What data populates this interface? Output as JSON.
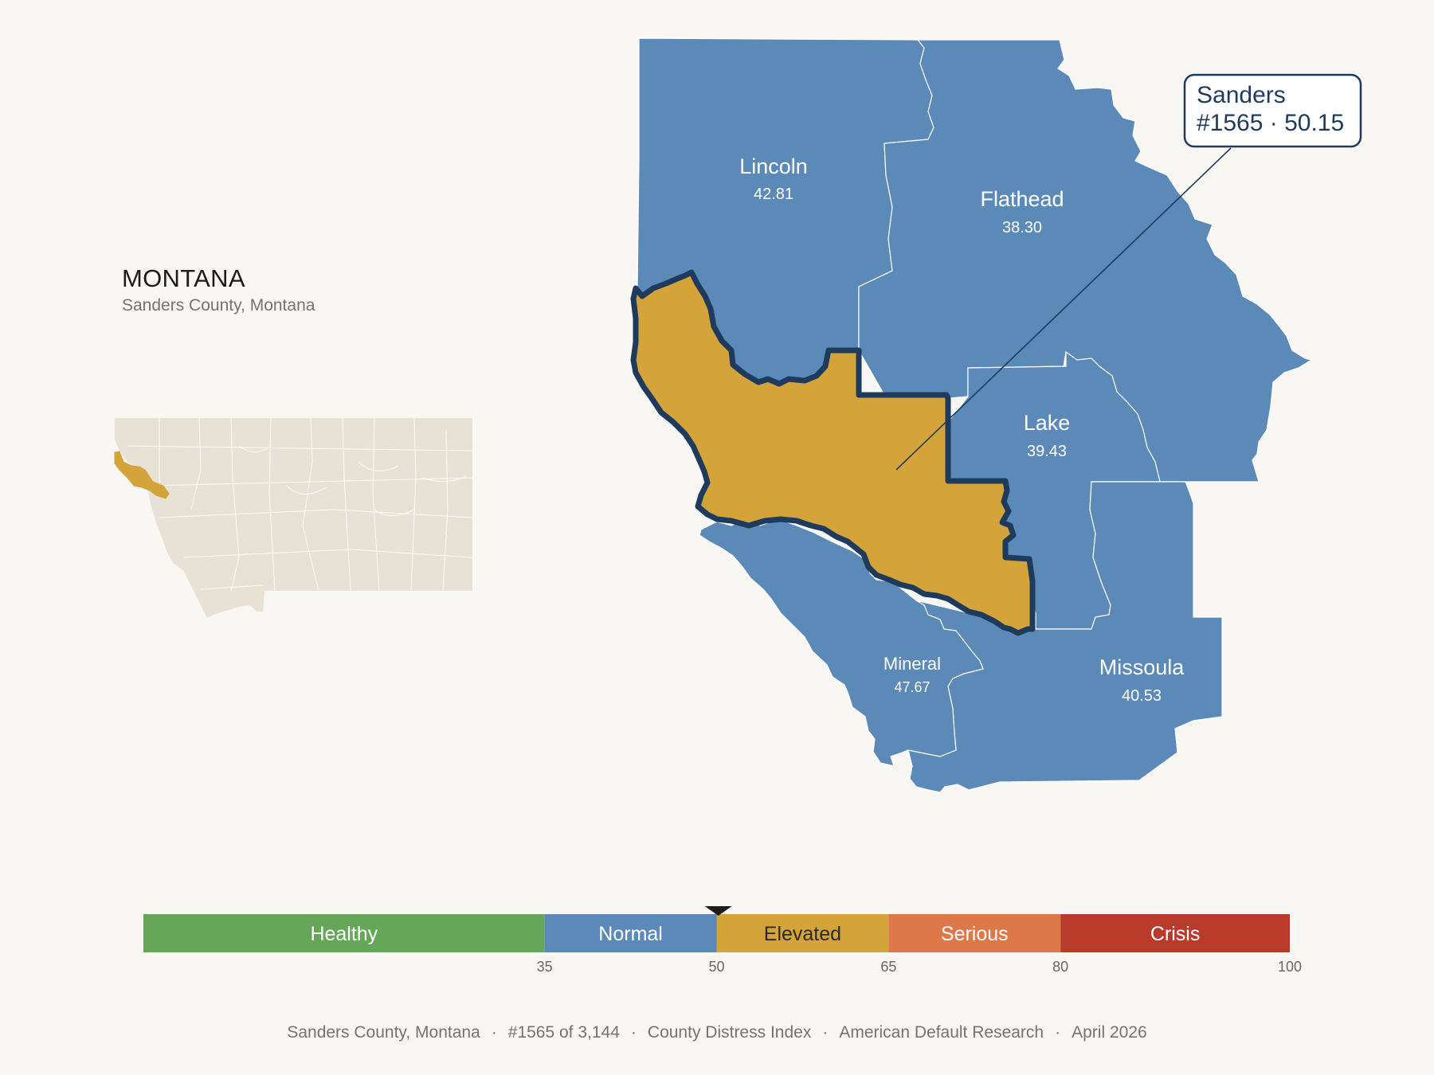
{
  "state": {
    "title": "MONTANA",
    "subtitle": "Sanders County, Montana"
  },
  "colors": {
    "background": "#f9f7f4",
    "normal": "#5b89b8",
    "elevated": "#d4a43a",
    "healthy": "#66a659",
    "serious": "#de784a",
    "crisis": "#b93b2c",
    "outline": "#1e3a5c",
    "inset_fill": "#e8e1d5"
  },
  "focus": {
    "name": "Sanders",
    "rank_score": "#1565 · 50.15"
  },
  "counties": [
    {
      "name": "Lincoln",
      "score": "42.81",
      "category": "Normal"
    },
    {
      "name": "Flathead",
      "score": "38.30",
      "category": "Normal"
    },
    {
      "name": "Lake",
      "score": "39.43",
      "category": "Normal"
    },
    {
      "name": "Mineral",
      "score": "47.67",
      "category": "Normal"
    },
    {
      "name": "Missoula",
      "score": "40.53",
      "category": "Normal"
    }
  ],
  "scale": {
    "marker_value": 50.15,
    "min": 0,
    "max": 100,
    "bands": [
      {
        "label": "Healthy",
        "from": 0,
        "to": 35
      },
      {
        "label": "Normal",
        "from": 35,
        "to": 50
      },
      {
        "label": "Elevated",
        "from": 50,
        "to": 65
      },
      {
        "label": "Serious",
        "from": 65,
        "to": 80
      },
      {
        "label": "Crisis",
        "from": 80,
        "to": 100
      }
    ],
    "ticks": [
      "35",
      "50",
      "65",
      "80",
      "100"
    ]
  },
  "footer": {
    "county": "Sanders County, Montana",
    "rank": "#1565 of 3,144",
    "index": "County Distress Index",
    "org": "American Default Research",
    "date": "April 2026"
  }
}
